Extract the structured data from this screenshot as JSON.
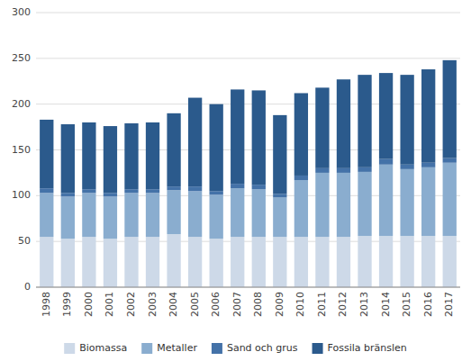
{
  "chart_data": {
    "type": "bar",
    "stacked": true,
    "categories": [
      "1998",
      "1999",
      "2000",
      "2001",
      "2002",
      "2003",
      "2004",
      "2005",
      "2006",
      "2007",
      "2008",
      "2009",
      "2010",
      "2011",
      "2012",
      "2013",
      "2014",
      "2015",
      "2016",
      "2017"
    ],
    "series": [
      {
        "name": "Biomassa",
        "color": "#cdd9e8",
        "values": [
          55,
          53,
          55,
          53,
          55,
          55,
          58,
          55,
          53,
          55,
          55,
          55,
          55,
          55,
          55,
          56,
          56,
          56,
          56,
          56
        ]
      },
      {
        "name": "Metaller",
        "color": "#8aadcf",
        "values": [
          48,
          46,
          48,
          46,
          48,
          48,
          48,
          50,
          48,
          53,
          52,
          43,
          62,
          70,
          70,
          70,
          78,
          73,
          75,
          80
        ]
      },
      {
        "name": "Sand och grus",
        "color": "#4472a8",
        "values": [
          5,
          4,
          4,
          4,
          4,
          4,
          4,
          5,
          4,
          5,
          5,
          4,
          5,
          5,
          5,
          5,
          6,
          5,
          5,
          5
        ]
      },
      {
        "name": "Fossila bränslen",
        "color": "#2b5a8c",
        "values": [
          75,
          75,
          73,
          73,
          72,
          73,
          80,
          97,
          95,
          103,
          103,
          86,
          90,
          88,
          97,
          101,
          94,
          98,
          102,
          107
        ]
      }
    ],
    "ylim": [
      0,
      300
    ],
    "yticks": [
      0,
      50,
      100,
      150,
      200,
      250,
      300
    ],
    "grid": true,
    "legend": "bottom"
  }
}
